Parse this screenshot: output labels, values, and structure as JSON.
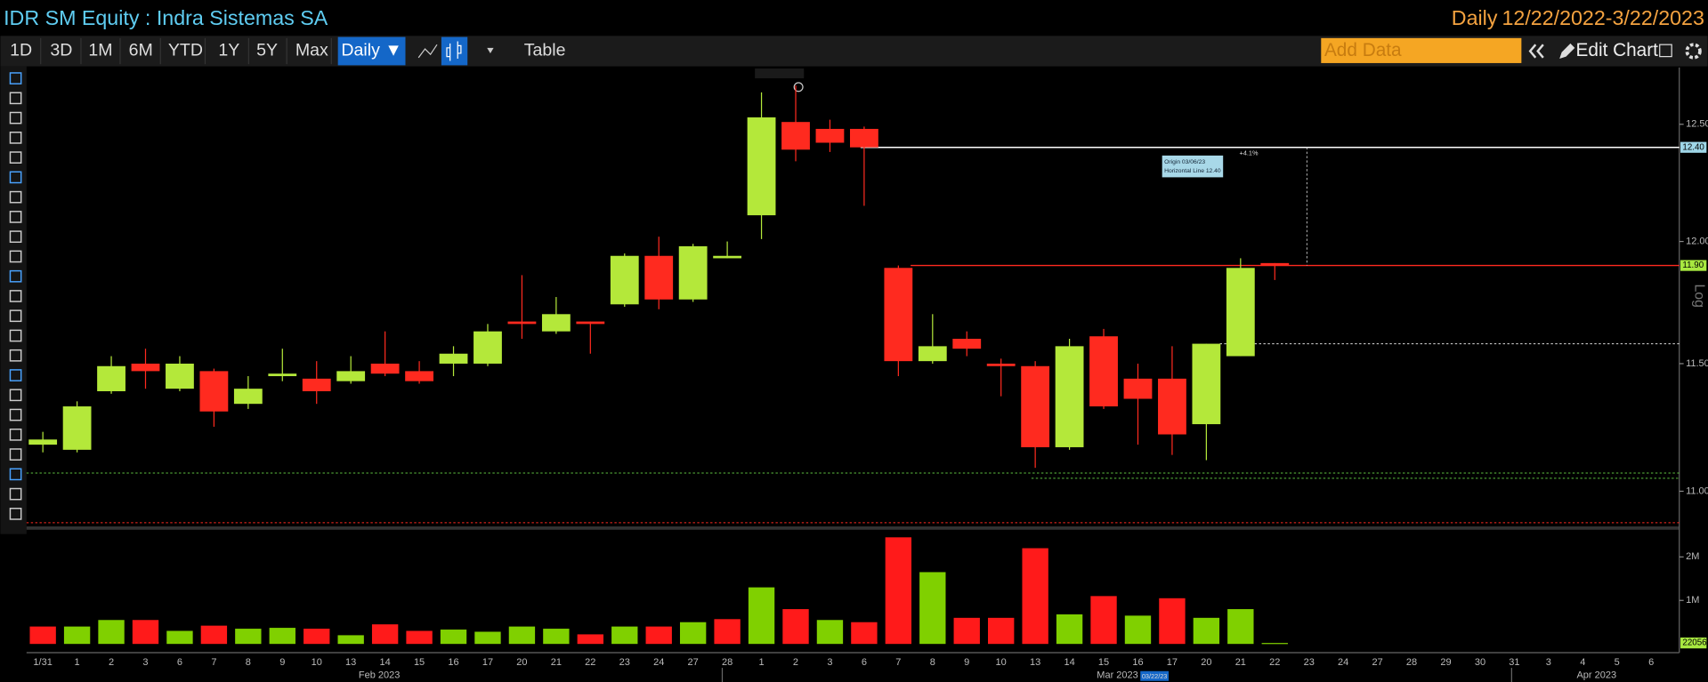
{
  "header": {
    "security": "IDR SM Equity : Indra Sistemas SA",
    "period": "Daily",
    "range": "12/22/2022-3/22/2023"
  },
  "toolbar": {
    "buttons": [
      "1D",
      "3D",
      "1M",
      "6M",
      "YTD",
      "1Y",
      "5Y",
      "Max"
    ],
    "frequency": "Daily ▼",
    "table": "Table",
    "add_data": "Add Data",
    "edit_chart": "Edit Chart"
  },
  "chart_data": {
    "type": "candlestick",
    "log_scale": true,
    "scale_label": "Log",
    "categories": [
      "1/31",
      "1",
      "2",
      "3",
      "6",
      "7",
      "8",
      "9",
      "10",
      "13",
      "14",
      "15",
      "16",
      "17",
      "20",
      "21",
      "22",
      "23",
      "24",
      "27",
      "28",
      "1",
      "2",
      "3",
      "6",
      "7",
      "8",
      "9",
      "10",
      "13",
      "14",
      "15",
      "16",
      "17",
      "20",
      "21",
      "22",
      "23",
      "24",
      "27",
      "28",
      "29",
      "30",
      "31",
      "3",
      "4",
      "5",
      "6"
    ],
    "months": [
      "Feb 2023",
      "Mar 2023",
      "Apr 2023"
    ],
    "cursor_date": "03/22/23",
    "up_color": "#b4e83a",
    "down_color": "#ff2a1f",
    "open": [
      11.18,
      11.16,
      11.39,
      11.5,
      11.4,
      11.47,
      11.34,
      11.45,
      11.44,
      11.43,
      11.5,
      11.47,
      11.5,
      11.5,
      11.67,
      11.63,
      11.67,
      11.74,
      11.94,
      11.76,
      11.93,
      12.11,
      12.51,
      12.48,
      12.48,
      11.89,
      11.51,
      11.6,
      11.5,
      11.49,
      11.17,
      11.61,
      11.44,
      11.44,
      11.26,
      11.53,
      11.91,
      null,
      null,
      null,
      null,
      null,
      null,
      null,
      null,
      null,
      null,
      null
    ],
    "high": [
      11.23,
      11.35,
      11.53,
      11.56,
      11.53,
      11.48,
      11.45,
      11.56,
      11.51,
      11.53,
      11.63,
      11.51,
      11.57,
      11.66,
      11.86,
      11.77,
      11.67,
      11.95,
      12.02,
      11.99,
      12.0,
      12.64,
      12.67,
      12.52,
      12.49,
      11.9,
      11.7,
      11.63,
      11.52,
      11.51,
      11.6,
      11.64,
      11.5,
      11.57,
      11.58,
      11.93,
      11.91,
      null,
      null,
      null,
      null,
      null,
      null,
      null,
      null,
      null,
      null,
      null
    ],
    "low": [
      11.15,
      11.15,
      11.38,
      11.4,
      11.39,
      11.25,
      11.32,
      11.43,
      11.34,
      11.42,
      11.45,
      11.42,
      11.45,
      11.49,
      11.6,
      11.62,
      11.54,
      11.73,
      11.72,
      11.75,
      11.93,
      12.01,
      12.34,
      12.38,
      12.15,
      11.45,
      11.5,
      11.53,
      11.37,
      11.09,
      11.16,
      11.32,
      11.18,
      11.14,
      11.12,
      11.53,
      11.84,
      null,
      null,
      null,
      null,
      null,
      null,
      null,
      null,
      null,
      null,
      null
    ],
    "close": [
      11.2,
      11.33,
      11.49,
      11.47,
      11.5,
      11.31,
      11.4,
      11.46,
      11.39,
      11.47,
      11.46,
      11.43,
      11.54,
      11.63,
      11.66,
      11.7,
      11.66,
      11.94,
      11.76,
      11.98,
      11.94,
      12.53,
      12.39,
      12.42,
      12.4,
      11.51,
      11.57,
      11.56,
      11.49,
      11.17,
      11.57,
      11.33,
      11.36,
      11.22,
      11.58,
      11.89,
      11.9,
      null,
      null,
      null,
      null,
      null,
      null,
      null,
      null,
      null,
      null,
      null
    ],
    "ylim": [
      10.87,
      12.75
    ],
    "yticks": [
      {
        "value": 11,
        "label": "11.00"
      },
      {
        "value": 11.5,
        "label": "11.50"
      },
      {
        "value": 12,
        "label": "12.00"
      },
      {
        "value": 12.5,
        "label": "12.50"
      }
    ],
    "hlines": [
      {
        "value": 12.4,
        "label": "12.40",
        "color": "#ffffff",
        "dash": false
      },
      {
        "value": 11.9,
        "label": "11.90",
        "color": "#ff2a1f",
        "dash": false
      },
      {
        "value": 11.58,
        "color": "#dddddd",
        "dash": true
      },
      {
        "value": 11.07,
        "color": "#5ec040",
        "dash": true
      },
      {
        "value": 11.05,
        "color": "#5ec040",
        "dash": true
      },
      {
        "value": 10.88,
        "color": "#ff2a1f",
        "dash": true
      }
    ],
    "annotations": [
      "Origin 03/06/23",
      "Horizontal Line 12.40",
      "+4.1%"
    ],
    "volume": {
      "ylim": [
        0,
        2500000
      ],
      "yticks": [
        {
          "value": 1000000,
          "label": "1M"
        },
        {
          "value": 2000000,
          "label": "2M"
        }
      ],
      "values": [
        400000,
        400000,
        550000,
        550000,
        300000,
        420000,
        350000,
        370000,
        350000,
        200000,
        450000,
        300000,
        330000,
        280000,
        400000,
        350000,
        220000,
        400000,
        400000,
        500000,
        570000,
        1300000,
        800000,
        550000,
        500000,
        2450000,
        1650000,
        600000,
        600000,
        2200000,
        680000,
        1100000,
        650000,
        1050000,
        600000,
        800000,
        22056,
        null,
        null,
        null,
        null,
        null,
        null,
        null,
        null,
        null,
        null,
        null
      ],
      "colors": [
        "#ff1a1a",
        "#80d000",
        "#80d000",
        "#ff1a1a",
        "#80d000",
        "#ff1a1a",
        "#80d000",
        "#80d000",
        "#ff1a1a",
        "#80d000",
        "#ff1a1a",
        "#ff1a1a",
        "#80d000",
        "#80d000",
        "#80d000",
        "#80d000",
        "#ff1a1a",
        "#80d000",
        "#ff1a1a",
        "#80d000",
        "#ff1a1a",
        "#80d000",
        "#ff1a1a",
        "#80d000",
        "#ff1a1a",
        "#ff1a1a",
        "#80d000",
        "#ff1a1a",
        "#ff1a1a",
        "#ff1a1a",
        "#80d000",
        "#ff1a1a",
        "#80d000",
        "#ff1a1a",
        "#80d000",
        "#80d000",
        "#80d000",
        null,
        null,
        null,
        null,
        null,
        null,
        null,
        null,
        null,
        null,
        null
      ]
    }
  }
}
